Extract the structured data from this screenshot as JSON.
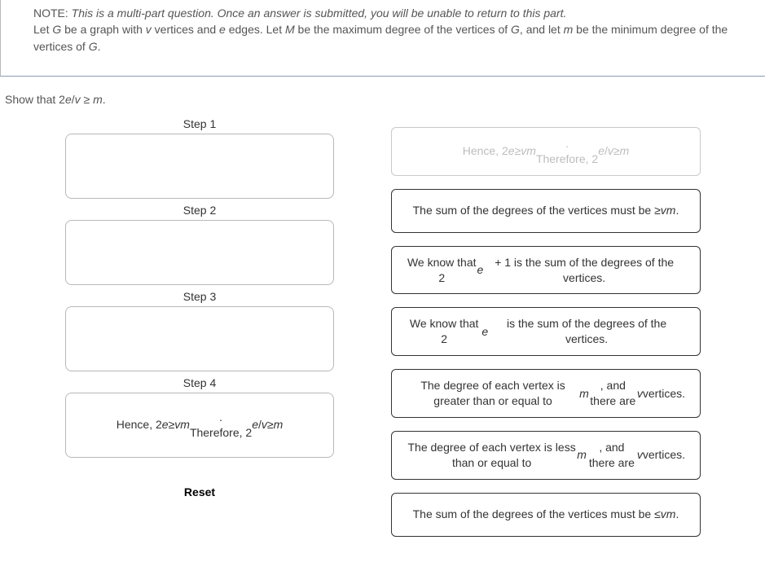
{
  "note": {
    "label": "NOTE:",
    "intro": "This is a multi-part question. Once an answer is submitted, you will be unable to return to this part.",
    "body_html": "Let <em>G</em> be a graph with <em>v</em> vertices and <em>e</em> edges. Let <em>M</em> be the maximum degree of the vertices of <em>G</em>, and let <em>m</em> be the minimum degree of the vertices of <em>G</em>."
  },
  "question_html": "Show that 2<em>e</em>/<em>v</em> ≥ <em>m</em>.",
  "steps": [
    {
      "label": "Step 1",
      "content_html": ""
    },
    {
      "label": "Step 2",
      "content_html": ""
    },
    {
      "label": "Step 3",
      "content_html": ""
    },
    {
      "label": "Step 4",
      "content_html": "Hence, 2<em>e</em> ≥ <em>vm</em>.<br>Therefore, 2<em>e</em>/<em>v</em> ≥ <em>m</em>"
    }
  ],
  "tiles": [
    {
      "html": "Hence, 2<em>e</em> ≥ <em>vm</em>.<br>Therefore, 2<em>e</em>/<em>v</em> ≥ <em>m</em>",
      "used": true
    },
    {
      "html": "The sum of the degrees of the vertices must be ≥ <em>vm</em>.",
      "used": false
    },
    {
      "html": "We know that 2<em>e</em> + 1 is the sum of the degrees of the vertices.",
      "used": false
    },
    {
      "html": "We know that 2<em>e</em> is the sum of the degrees of the vertices.",
      "used": false
    },
    {
      "html": "The degree of each vertex is greater than or equal to <em>m</em>, and there are <em>v</em> vertices.",
      "used": false
    },
    {
      "html": "The degree of each vertex is less than or equal to <em>m</em>, and there are <em>v</em> vertices.",
      "used": false
    },
    {
      "html": "The sum of the degrees of the vertices must be ≤ <em>vm</em>.",
      "used": false
    }
  ],
  "reset_label": "Reset"
}
